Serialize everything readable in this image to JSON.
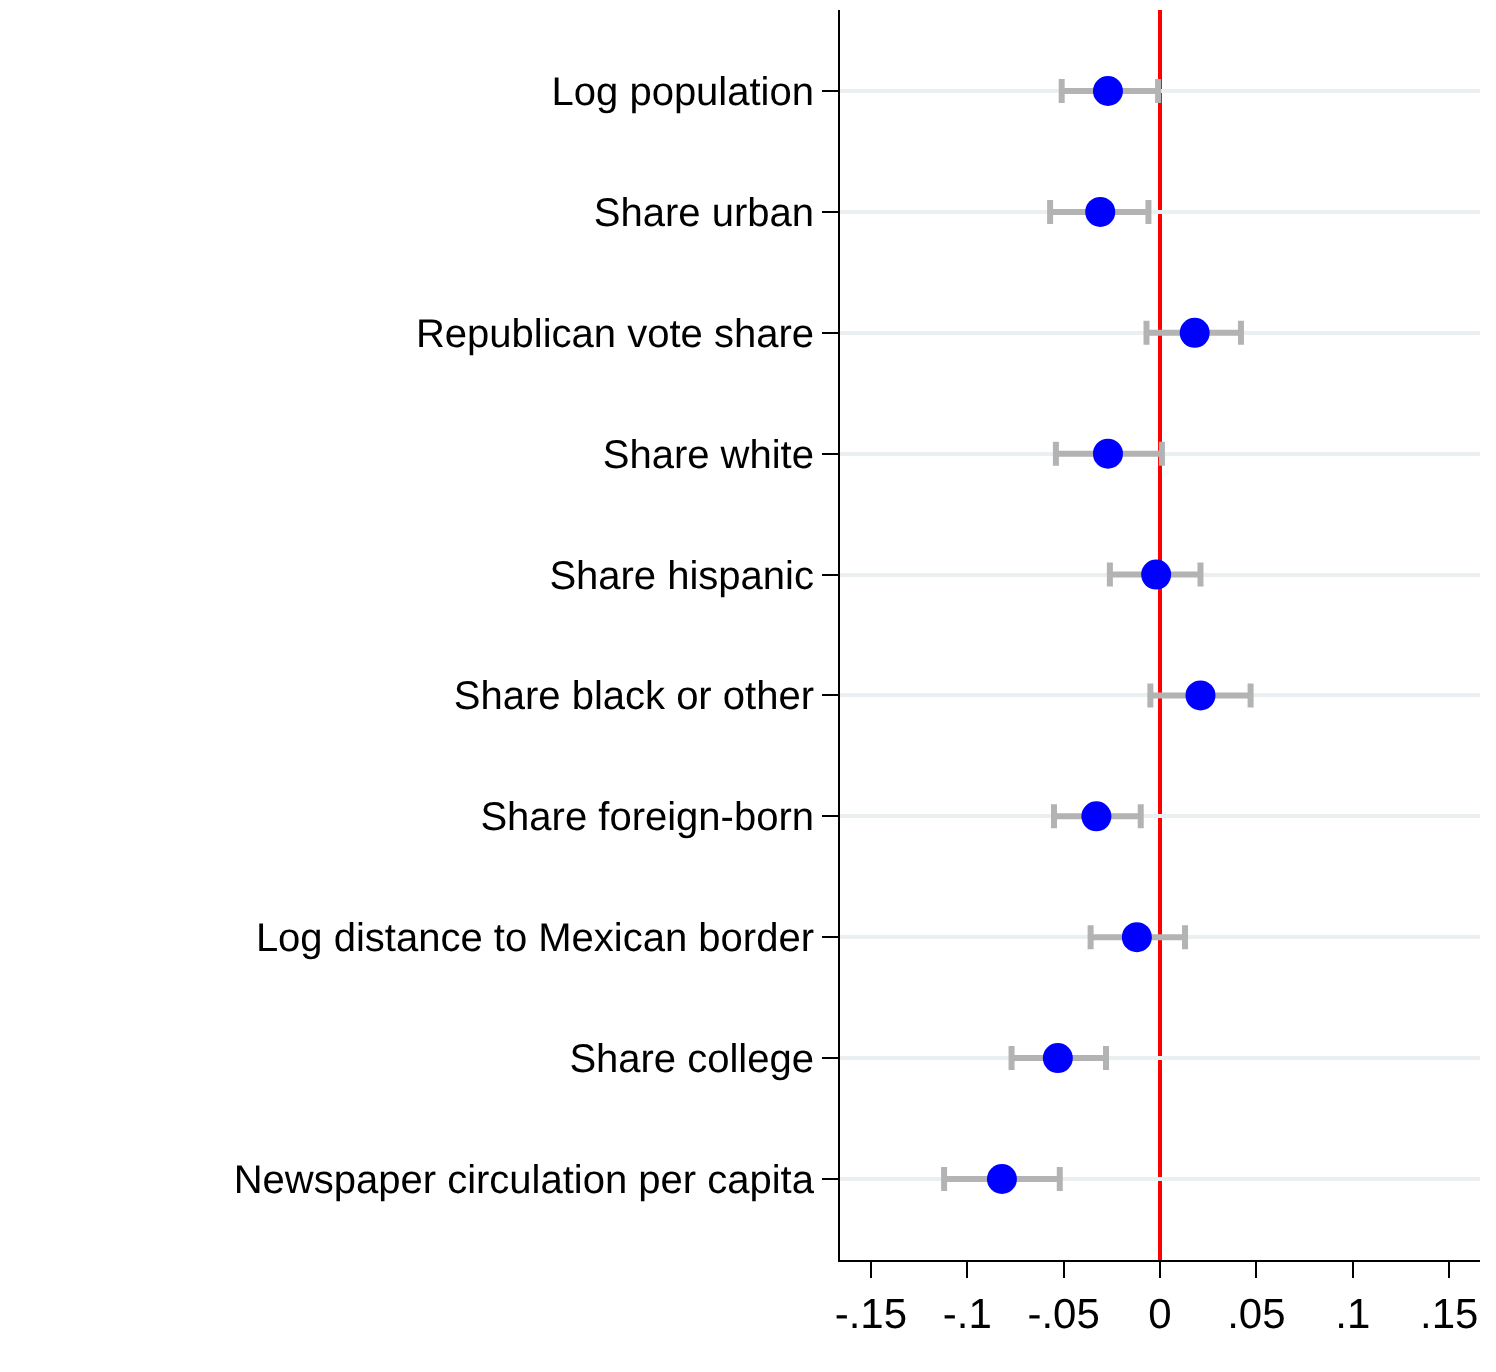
{
  "chart_data": {
    "type": "scatter",
    "orientation": "horizontal",
    "categories": [
      "Log population",
      "Share urban",
      "Republican vote share",
      "Share white",
      "Share hispanic",
      "Share black or other",
      "Share foreign-born",
      "Log distance to Mexican border",
      "Share college",
      "Newspaper circulation per capita"
    ],
    "series": [
      {
        "color": "#0000ff",
        "values": [
          -0.027,
          -0.031,
          0.018,
          -0.027,
          -0.002,
          0.021,
          -0.033,
          -0.012,
          -0.053,
          -0.082
        ],
        "errors": [
          [
            -0.051,
            -0.001
          ],
          [
            -0.057,
            -0.006
          ],
          [
            -0.007,
            0.042
          ],
          [
            -0.054,
            0.001
          ],
          [
            -0.026,
            0.021
          ],
          [
            -0.005,
            0.047
          ],
          [
            -0.055,
            -0.01
          ],
          [
            -0.036,
            0.013
          ],
          [
            -0.077,
            -0.028
          ],
          [
            -0.112,
            -0.052
          ]
        ]
      }
    ],
    "xlim": [
      -0.166,
      0.166
    ],
    "xticks": [
      {
        "value": -0.15,
        "label": "-.15"
      },
      {
        "value": -0.1,
        "label": "-.1"
      },
      {
        "value": -0.05,
        "label": "-.05"
      },
      0,
      {
        "value": 0.05,
        "label": ".05"
      },
      {
        "value": 0.1,
        "label": ".1"
      },
      {
        "value": 0.15,
        "label": ".15"
      }
    ],
    "ref_lines": [
      {
        "axis": "x",
        "value": 0,
        "color": "#ff0000"
      }
    ],
    "grid": "y",
    "marker": "circle"
  }
}
